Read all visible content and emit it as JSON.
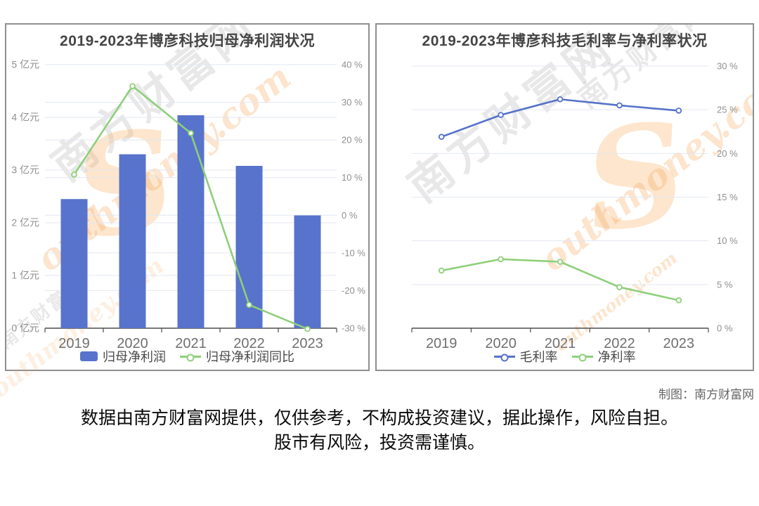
{
  "page": {
    "credit": "制图：南方财富网",
    "disclaimer": {
      "line1": "数据由南方财富网提供，仅供参考，不构成投资建议，据此操作，风险自担。",
      "line2": "股市有风险，投资需谨慎。"
    },
    "watermark": {
      "cn": "南方财富网",
      "en": "outhmoney.com",
      "s": "S"
    },
    "colors": {
      "bar_blue": "#5873cb",
      "line_green": "#8ecf7b",
      "line_blue": "#5672c9",
      "grid": "#e2e7f2",
      "axis": "#4d4d4d",
      "tick_label": "#8f8f8f",
      "x_label": "#6f6f6f",
      "title": "#454545"
    }
  },
  "chart_data": [
    {
      "type": "bar",
      "title": "2019-2023年博彦科技归母净利润状况",
      "categories": [
        "2019",
        "2020",
        "2021",
        "2022",
        "2023"
      ],
      "series": [
        {
          "name": "归母净利润",
          "kind": "bar",
          "axis": "left",
          "unit": "亿元",
          "values": [
            2.45,
            3.3,
            4.04,
            3.08,
            2.14
          ],
          "color": "#5873cb"
        },
        {
          "name": "归母净利润同比",
          "kind": "line",
          "axis": "right",
          "unit": "%",
          "values": [
            10.8,
            34.3,
            21.8,
            -23.8,
            -30.2
          ],
          "color": "#8ecf7b"
        }
      ],
      "left_axis": {
        "min": 0,
        "max": 5,
        "ticks": [
          "5 亿元",
          "4 亿元",
          "3 亿元",
          "2 亿元",
          "1 亿元",
          "0 亿元"
        ]
      },
      "right_axis": {
        "min": -30,
        "max": 40,
        "ticks": [
          "40 %",
          "30 %",
          "20 %",
          "10 %",
          "0 %",
          "-10 %",
          "-20 %",
          "-30 %"
        ]
      },
      "grid": true,
      "legend_position": "bottom"
    },
    {
      "type": "line",
      "title": "2019-2023年博彦科技毛利率与净利率状况",
      "categories": [
        "2019",
        "2020",
        "2021",
        "2022",
        "2023"
      ],
      "series": [
        {
          "name": "毛利率",
          "kind": "line",
          "axis": "right",
          "unit": "%",
          "values": [
            21.9,
            24.4,
            26.2,
            25.5,
            24.9
          ],
          "color": "#5672c9"
        },
        {
          "name": "净利率",
          "kind": "line",
          "axis": "right",
          "unit": "%",
          "values": [
            6.6,
            7.9,
            7.6,
            4.7,
            3.2
          ],
          "color": "#8ecf7b"
        }
      ],
      "right_axis": {
        "min": 0,
        "max": 30,
        "ticks": [
          "30 %",
          "25 %",
          "20 %",
          "15 %",
          "10 %",
          "5 %",
          "0 %"
        ]
      },
      "grid": true,
      "legend_position": "bottom"
    }
  ]
}
